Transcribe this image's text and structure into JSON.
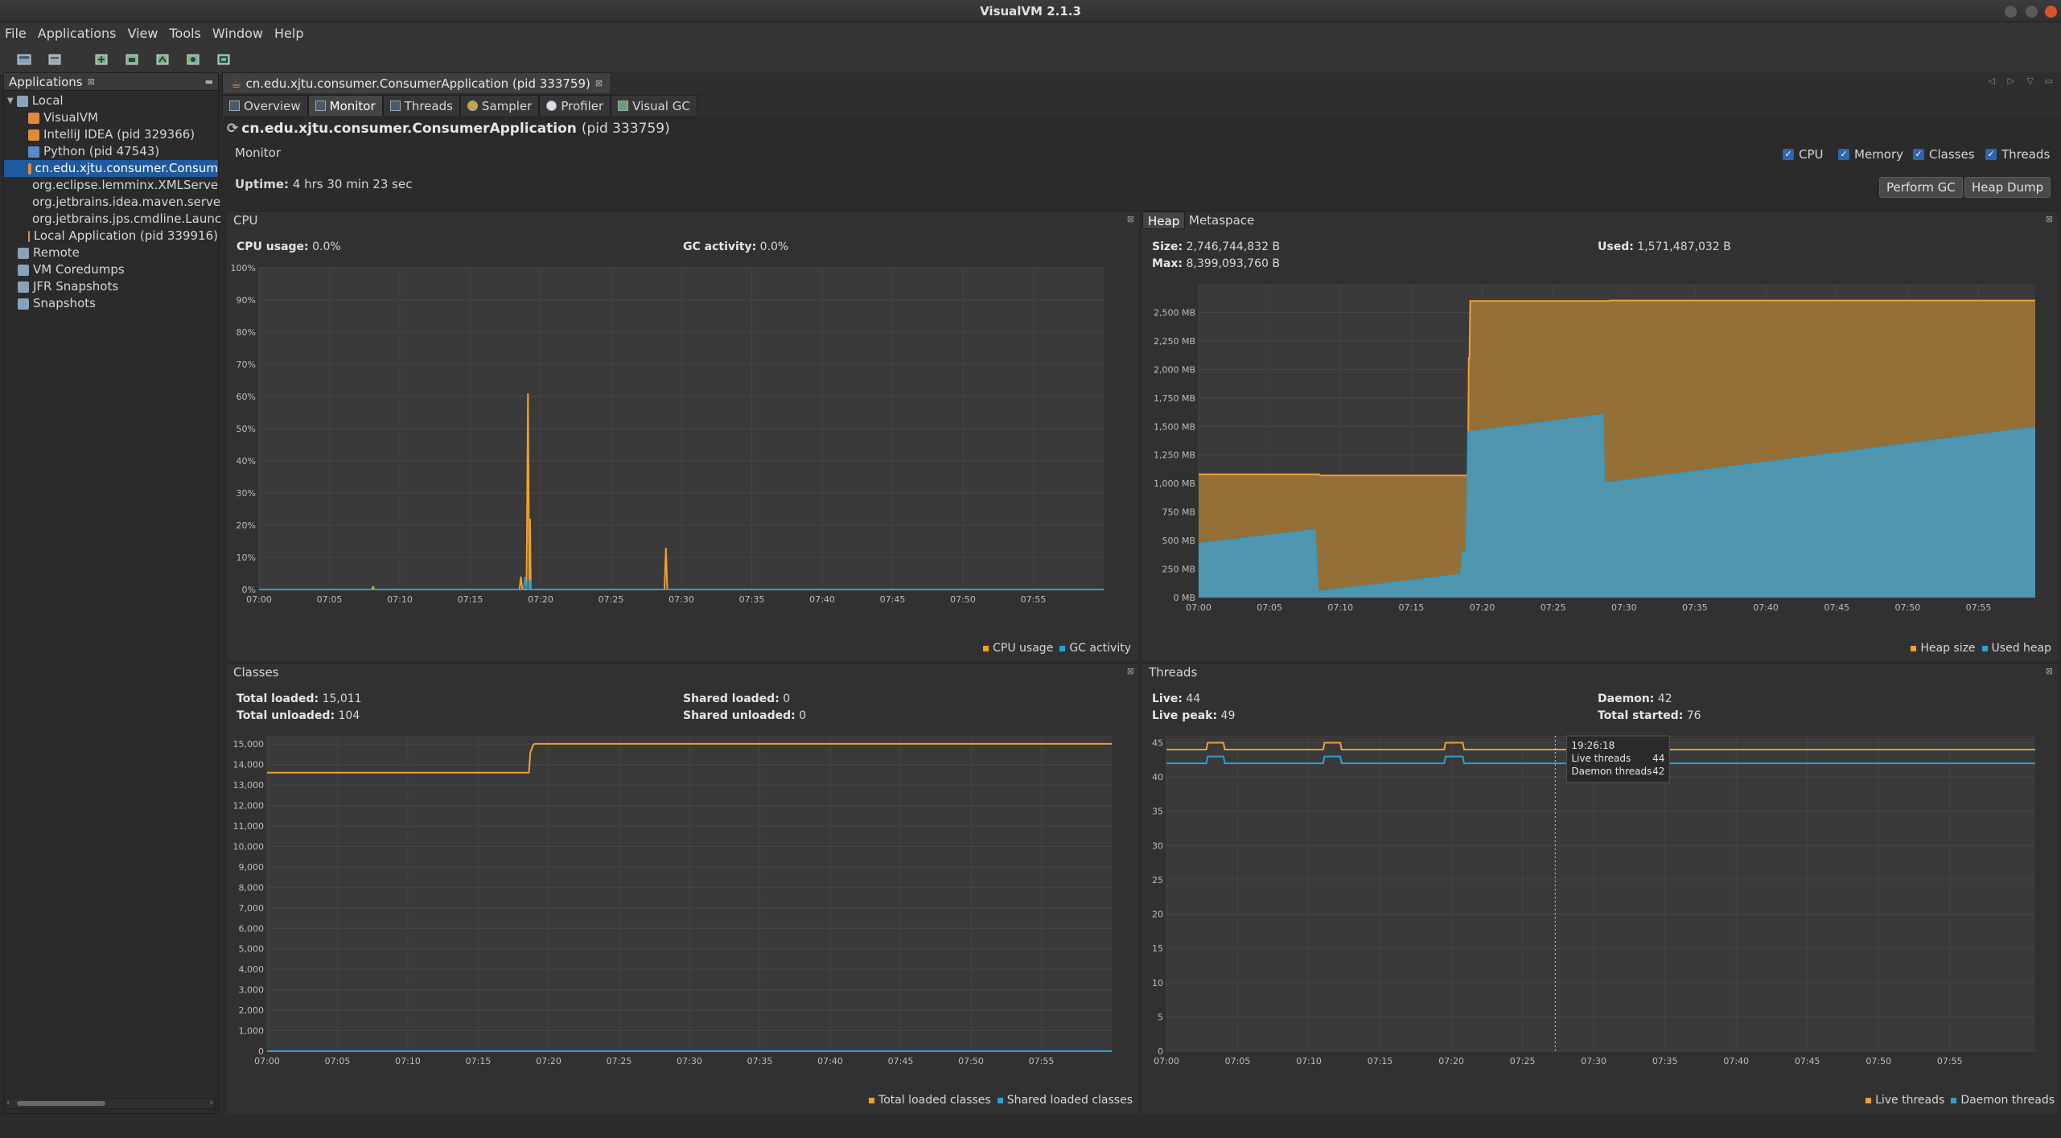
{
  "window": {
    "title": "VisualVM 2.1.3"
  },
  "menu": [
    "File",
    "Applications",
    "View",
    "Tools",
    "Window",
    "Help"
  ],
  "toolbar_icons": [
    "add-jmx-icon",
    "add-snapshot-icon",
    "thread-dump-icon",
    "heap-dump-icon",
    "profile-icon",
    "snapshot-icon",
    "load-icon"
  ],
  "sidebar": {
    "title": "Applications",
    "items": [
      {
        "label": "Local",
        "indent": 0,
        "expander": "▼"
      },
      {
        "label": "VisualVM",
        "indent": 2
      },
      {
        "label": "IntelliJ IDEA (pid 329366)",
        "indent": 2
      },
      {
        "label": "Python (pid 47543)",
        "indent": 2
      },
      {
        "label": "cn.edu.xjtu.consumer.Consum",
        "indent": 2,
        "selected": true
      },
      {
        "label": "org.eclipse.lemminx.XMLServe",
        "indent": 2
      },
      {
        "label": "org.jetbrains.idea.maven.serve",
        "indent": 2
      },
      {
        "label": "org.jetbrains.jps.cmdline.Launc",
        "indent": 2
      },
      {
        "label": "Local Application (pid 339916)",
        "indent": 2
      },
      {
        "label": "Remote",
        "indent": 1
      },
      {
        "label": "VM Coredumps",
        "indent": 1
      },
      {
        "label": "JFR Snapshots",
        "indent": 1
      },
      {
        "label": "Snapshots",
        "indent": 1
      }
    ]
  },
  "doc_tab": {
    "label": "cn.edu.xjtu.consumer.ConsumerApplication (pid 333759)"
  },
  "subtabs": [
    "Overview",
    "Monitor",
    "Threads",
    "Sampler",
    "Profiler",
    "Visual GC"
  ],
  "app": {
    "name": "cn.edu.xjtu.consumer.ConsumerApplication",
    "pid": "(pid 333759)",
    "section": "Monitor",
    "uptime_label": "Uptime:",
    "uptime_value": "4 hrs 30 min 23 sec"
  },
  "checkboxes": [
    "CPU",
    "Memory",
    "Classes",
    "Threads"
  ],
  "buttons": {
    "gc": "Perform GC",
    "heapdump": "Heap Dump"
  },
  "cpu_panel": {
    "title": "CPU",
    "cpu_usage_label": "CPU usage:",
    "cpu_usage_value": "0.0%",
    "gc_label": "GC activity:",
    "gc_value": "0.0%",
    "legend": [
      "CPU usage",
      "GC activity"
    ]
  },
  "heap_panel": {
    "tabs": [
      "Heap",
      "Metaspace"
    ],
    "size_label": "Size:",
    "size_value": "2,746,744,832 B",
    "max_label": "Max:",
    "max_value": "8,399,093,760 B",
    "used_label": "Used:",
    "used_value": "1,571,487,032 B",
    "legend": [
      "Heap size",
      "Used heap"
    ]
  },
  "classes_panel": {
    "title": "Classes",
    "total_loaded_label": "Total loaded:",
    "total_loaded_value": "15,011",
    "total_unloaded_label": "Total unloaded:",
    "total_unloaded_value": "104",
    "shared_loaded_label": "Shared loaded:",
    "shared_loaded_value": "0",
    "shared_unloaded_label": "Shared unloaded:",
    "shared_unloaded_value": "0",
    "legend": [
      "Total loaded classes",
      "Shared loaded classes"
    ]
  },
  "threads_panel": {
    "title": "Threads",
    "live_label": "Live:",
    "live_value": "44",
    "peak_label": "Live peak:",
    "peak_value": "49",
    "daemon_label": "Daemon:",
    "daemon_value": "42",
    "started_label": "Total started:",
    "started_value": "76",
    "legend": [
      "Live threads",
      "Daemon threads"
    ],
    "tooltip": {
      "time": "19:26:18",
      "live_label": "Live threads",
      "live": "44",
      "daemon_label": "Daemon threads",
      "daemon": "42"
    }
  },
  "colors": {
    "orange": "#f0a030",
    "blue": "#2f9fd0",
    "selected": "#1f5aa0"
  },
  "chart_data": [
    {
      "type": "line",
      "name": "cpu",
      "x_ticks": [
        "07:00",
        "07:05",
        "07:10",
        "07:15",
        "07:20",
        "07:25",
        "07:30",
        "07:35",
        "07:40",
        "07:45",
        "07:50",
        "07:55"
      ],
      "y_ticks": [
        "0%",
        "10%",
        "20%",
        "30%",
        "40%",
        "50%",
        "60%",
        "70%",
        "80%",
        "90%",
        "100%"
      ],
      "ylim": [
        0,
        100
      ],
      "series": [
        {
          "name": "CPU usage",
          "points": [
            [
              0,
              0
            ],
            [
              8.0,
              0
            ],
            [
              8.1,
              0.8
            ],
            [
              8.2,
              0
            ],
            [
              18.5,
              0
            ],
            [
              18.6,
              4
            ],
            [
              18.7,
              0
            ],
            [
              19.0,
              0
            ],
            [
              19.1,
              61
            ],
            [
              19.2,
              0
            ],
            [
              19.25,
              22
            ],
            [
              19.3,
              0
            ],
            [
              28.8,
              0
            ],
            [
              28.9,
              13
            ],
            [
              29.0,
              0
            ],
            [
              60,
              0
            ]
          ]
        },
        {
          "name": "GC activity",
          "points": [
            [
              0,
              0
            ],
            [
              18.8,
              0
            ],
            [
              18.9,
              4
            ],
            [
              19.0,
              0
            ],
            [
              19.2,
              0
            ],
            [
              19.25,
              3
            ],
            [
              19.3,
              0
            ],
            [
              60,
              0
            ]
          ]
        }
      ]
    },
    {
      "type": "area",
      "name": "heap",
      "x_ticks": [
        "07:00",
        "07:05",
        "07:10",
        "07:15",
        "07:20",
        "07:25",
        "07:30",
        "07:35",
        "07:40",
        "07:45",
        "07:50",
        "07:55"
      ],
      "y_ticks": [
        "0 MB",
        "250 MB",
        "500 MB",
        "750 MB",
        "1,000 MB",
        "1,250 MB",
        "1,500 MB",
        "1,750 MB",
        "2,000 MB",
        "2,250 MB",
        "2,500 MB"
      ],
      "ylim": [
        0,
        2750
      ],
      "series": [
        {
          "name": "Heap size",
          "points": [
            [
              0,
              1080
            ],
            [
              8.5,
              1080
            ],
            [
              8.6,
              1070
            ],
            [
              19,
              1070
            ],
            [
              19.05,
              2100
            ],
            [
              19.1,
              2100
            ],
            [
              19.15,
              2600
            ],
            [
              28.9,
              2600
            ],
            [
              29.0,
              2605
            ],
            [
              59,
              2605
            ]
          ]
        },
        {
          "name": "Used heap",
          "points": [
            [
              0,
              470
            ],
            [
              8.2,
              590
            ],
            [
              8.4,
              50
            ],
            [
              18.5,
              200
            ],
            [
              18.6,
              390
            ],
            [
              18.9,
              390
            ],
            [
              19.0,
              1450
            ],
            [
              28.5,
              1600
            ],
            [
              28.6,
              1000
            ],
            [
              59,
              1490
            ]
          ]
        }
      ]
    },
    {
      "type": "line",
      "name": "classes",
      "x_ticks": [
        "07:00",
        "07:05",
        "07:10",
        "07:15",
        "07:20",
        "07:25",
        "07:30",
        "07:35",
        "07:40",
        "07:45",
        "07:50",
        "07:55"
      ],
      "y_ticks": [
        "0",
        "1,000",
        "2,000",
        "3,000",
        "4,000",
        "5,000",
        "6,000",
        "7,000",
        "8,000",
        "9,000",
        "10,000",
        "11,000",
        "12,000",
        "13,000",
        "14,000",
        "15,000"
      ],
      "ylim": [
        0,
        15400
      ],
      "series": [
        {
          "name": "Total loaded classes",
          "points": [
            [
              0,
              13600
            ],
            [
              18.6,
              13600
            ],
            [
              18.7,
              14600
            ],
            [
              18.9,
              14950
            ],
            [
              19.0,
              15011
            ],
            [
              60,
              15011
            ]
          ]
        },
        {
          "name": "Shared loaded classes",
          "points": [
            [
              0,
              0
            ],
            [
              60,
              0
            ]
          ]
        }
      ]
    },
    {
      "type": "line",
      "name": "threads",
      "x_ticks": [
        "07:00",
        "07:05",
        "07:10",
        "07:15",
        "07:20",
        "07:25",
        "07:30",
        "07:35",
        "07:40",
        "07:45",
        "07:50",
        "07:55"
      ],
      "y_ticks": [
        "0",
        "5",
        "10",
        "15",
        "20",
        "25",
        "30",
        "35",
        "40",
        "45"
      ],
      "ylim": [
        0,
        46
      ],
      "series": [
        {
          "name": "Live threads",
          "points": [
            [
              0,
              44
            ],
            [
              2.8,
              44
            ],
            [
              2.9,
              45
            ],
            [
              4.0,
              45
            ],
            [
              4.1,
              44
            ],
            [
              11.0,
              44
            ],
            [
              11.1,
              45
            ],
            [
              12.2,
              45
            ],
            [
              12.3,
              44
            ],
            [
              19.5,
              44
            ],
            [
              19.6,
              45
            ],
            [
              20.8,
              45
            ],
            [
              20.9,
              44
            ],
            [
              61,
              44
            ]
          ]
        },
        {
          "name": "Daemon threads",
          "points": [
            [
              0,
              42
            ],
            [
              2.8,
              42
            ],
            [
              2.9,
              43
            ],
            [
              4.0,
              43
            ],
            [
              4.1,
              42
            ],
            [
              11.0,
              42
            ],
            [
              11.1,
              43
            ],
            [
              12.2,
              43
            ],
            [
              12.3,
              42
            ],
            [
              19.5,
              42
            ],
            [
              19.6,
              43
            ],
            [
              20.8,
              43
            ],
            [
              20.9,
              42
            ],
            [
              61,
              42
            ]
          ]
        }
      ],
      "cursor_x": 27.3
    }
  ]
}
